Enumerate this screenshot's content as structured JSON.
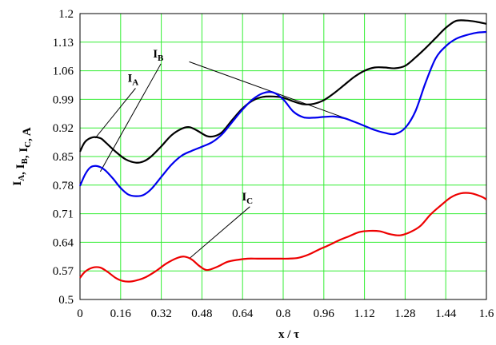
{
  "chart_data": {
    "type": "line",
    "xlabel": "x / τ",
    "ylabel": "I_A, I_B, I_C, A",
    "xlim": [
      0,
      1.6
    ],
    "ylim": [
      0.5,
      1.2
    ],
    "xticks": [
      "0",
      "0.16",
      "0.32",
      "0.48",
      "0.64",
      "0.8",
      "0.96",
      "1.12",
      "1.28",
      "1.44",
      "1.6"
    ],
    "yticks": [
      "0.5",
      "0.57",
      "0.64",
      "0.71",
      "0.78",
      "0.85",
      "0.92",
      "0.99",
      "1.06",
      "1.13",
      "1.2"
    ],
    "grid": true,
    "series": [
      {
        "name": "I_A",
        "color": "#000000",
        "x": [
          0,
          0.02,
          0.05,
          0.08,
          0.1,
          0.14,
          0.18,
          0.22,
          0.25,
          0.28,
          0.32,
          0.36,
          0.4,
          0.43,
          0.46,
          0.5,
          0.53,
          0.56,
          0.6,
          0.64,
          0.68,
          0.72,
          0.76,
          0.8,
          0.84,
          0.88,
          0.92,
          0.96,
          1.0,
          1.04,
          1.08,
          1.12,
          1.16,
          1.2,
          1.24,
          1.28,
          1.32,
          1.36,
          1.4,
          1.44,
          1.48,
          1.52,
          1.56,
          1.6
        ],
        "y": [
          0.862,
          0.886,
          0.897,
          0.895,
          0.885,
          0.862,
          0.843,
          0.835,
          0.838,
          0.85,
          0.875,
          0.902,
          0.918,
          0.922,
          0.914,
          0.9,
          0.9,
          0.91,
          0.94,
          0.968,
          0.987,
          0.996,
          0.997,
          0.994,
          0.985,
          0.978,
          0.979,
          0.988,
          1.005,
          1.025,
          1.045,
          1.06,
          1.068,
          1.068,
          1.066,
          1.072,
          1.092,
          1.115,
          1.14,
          1.165,
          1.182,
          1.183,
          1.18,
          1.175
        ]
      },
      {
        "name": "I_B",
        "color": "#0000ee",
        "x": [
          0,
          0.02,
          0.04,
          0.06,
          0.08,
          0.1,
          0.13,
          0.16,
          0.19,
          0.22,
          0.25,
          0.28,
          0.32,
          0.36,
          0.4,
          0.44,
          0.48,
          0.52,
          0.56,
          0.6,
          0.64,
          0.68,
          0.72,
          0.76,
          0.8,
          0.84,
          0.88,
          0.92,
          0.96,
          1.0,
          1.04,
          1.08,
          1.12,
          1.16,
          1.2,
          1.24,
          1.28,
          1.32,
          1.36,
          1.4,
          1.44,
          1.48,
          1.52,
          1.56,
          1.6
        ],
        "y": [
          0.778,
          0.806,
          0.823,
          0.827,
          0.824,
          0.816,
          0.796,
          0.773,
          0.757,
          0.753,
          0.756,
          0.77,
          0.8,
          0.83,
          0.852,
          0.864,
          0.874,
          0.885,
          0.905,
          0.935,
          0.965,
          0.99,
          1.005,
          1.007,
          0.99,
          0.96,
          0.946,
          0.945,
          0.947,
          0.948,
          0.944,
          0.935,
          0.925,
          0.915,
          0.908,
          0.905,
          0.92,
          0.96,
          1.03,
          1.09,
          1.12,
          1.138,
          1.147,
          1.153,
          1.155
        ]
      },
      {
        "name": "I_C",
        "color": "#ee0000",
        "x": [
          0,
          0.02,
          0.05,
          0.08,
          0.11,
          0.14,
          0.17,
          0.2,
          0.23,
          0.26,
          0.3,
          0.34,
          0.38,
          0.41,
          0.44,
          0.47,
          0.5,
          0.54,
          0.58,
          0.62,
          0.66,
          0.7,
          0.74,
          0.78,
          0.82,
          0.86,
          0.9,
          0.94,
          0.98,
          1.02,
          1.06,
          1.1,
          1.14,
          1.18,
          1.22,
          1.26,
          1.3,
          1.34,
          1.38,
          1.42,
          1.46,
          1.5,
          1.54,
          1.58,
          1.6
        ],
        "y": [
          0.553,
          0.568,
          0.578,
          0.578,
          0.567,
          0.553,
          0.545,
          0.544,
          0.548,
          0.555,
          0.57,
          0.588,
          0.601,
          0.605,
          0.598,
          0.582,
          0.572,
          0.58,
          0.592,
          0.597,
          0.6,
          0.6,
          0.6,
          0.6,
          0.6,
          0.602,
          0.61,
          0.622,
          0.633,
          0.645,
          0.655,
          0.665,
          0.668,
          0.667,
          0.66,
          0.657,
          0.665,
          0.68,
          0.708,
          0.73,
          0.75,
          0.76,
          0.76,
          0.752,
          0.745
        ]
      }
    ],
    "annotations": [
      {
        "main": "I",
        "sub": "A",
        "tx": 0.225,
        "ty": 1.025,
        "px": 0.06,
        "py": 0.895
      },
      {
        "main": "I",
        "sub": "B",
        "tx": 0.325,
        "ty": 1.085,
        "px": 0.08,
        "py": 0.813
      },
      {
        "main": "I",
        "sub": "C",
        "tx": 0.675,
        "ty": 0.735,
        "px": 0.43,
        "py": 0.6
      }
    ],
    "extra_pointers": [
      {
        "from_x": 0.43,
        "from_y": 1.082,
        "to_x": 1.04,
        "to_y": 0.945
      }
    ]
  }
}
